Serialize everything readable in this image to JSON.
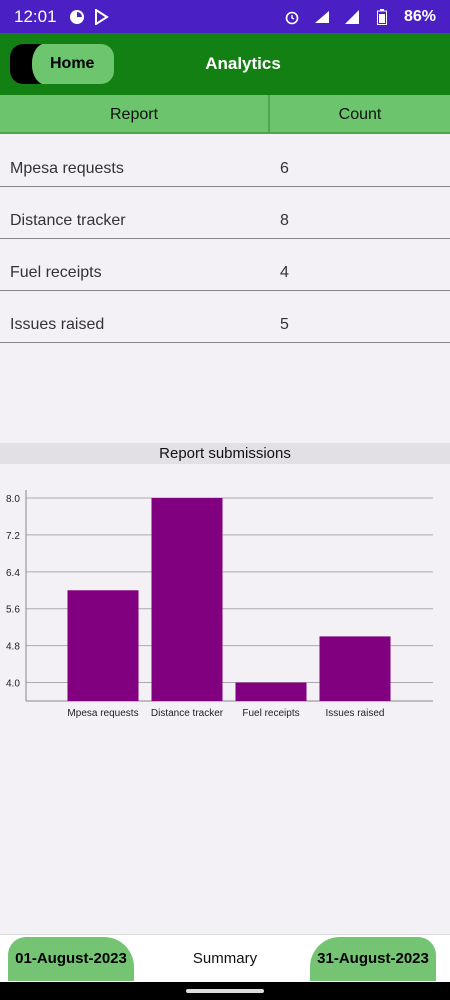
{
  "status_bar": {
    "time": "12:01",
    "battery": "86%",
    "left_icons": [
      "data-saver-icon",
      "play-store-icon"
    ],
    "right_icons": [
      "alarm-icon",
      "wifi-icon",
      "signal-icon",
      "battery-icon"
    ]
  },
  "app_bar": {
    "home_label": "Home",
    "title": "Analytics",
    "colors": {
      "bar": "#128012",
      "button": "#6dc56d"
    }
  },
  "table": {
    "headers": [
      "Report",
      "Count"
    ],
    "rows": [
      {
        "name": "Mpesa requests",
        "count": "6"
      },
      {
        "name": "Distance tracker",
        "count": "8"
      },
      {
        "name": "Fuel receipts",
        "count": "4"
      },
      {
        "name": "Issues raised",
        "count": "5"
      }
    ]
  },
  "chart_header": "Report submissions",
  "chart_data": {
    "type": "bar",
    "title": "Report submissions",
    "categories": [
      "Mpesa requests",
      "Distance tracker",
      "Fuel receipts",
      "Issues raised"
    ],
    "values": [
      6,
      8,
      4,
      5
    ],
    "ylim": [
      3.6,
      8.0
    ],
    "yticks": [
      "4.0",
      "4.8",
      "5.6",
      "6.4",
      "7.2",
      "8.0"
    ],
    "xlabel": "",
    "ylabel": "",
    "grid": true,
    "bar_color": "#800080"
  },
  "bottom_bar": {
    "start_date": "01-August-2023",
    "summary": "Summary",
    "end_date": "31-August-2023"
  }
}
